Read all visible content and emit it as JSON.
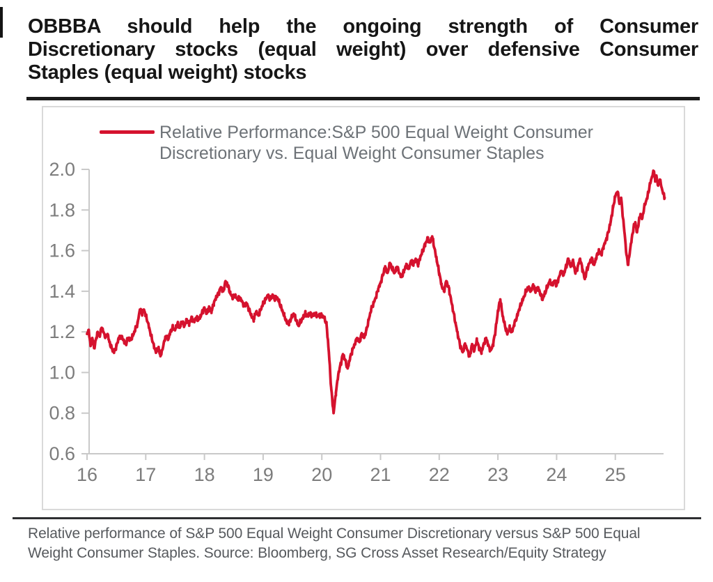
{
  "colors": {
    "title": "#161616",
    "rule": "#1b1b1b",
    "panel_border": "#d9d9d9",
    "axis": "#c9c9c9",
    "tick_label": "#7c7c7c",
    "legend_text": "#6d7277",
    "caption": "#56595d",
    "line": "#d5122e",
    "footnote_rule": "#2e2f32"
  },
  "header": {
    "title_lines": [
      "OBBBA should help the ongoing strength of Consumer",
      "Discretionary stocks (equal weight) over defensive Consumer",
      "Staples (equal weight) stocks"
    ]
  },
  "footer": {
    "caption_lines": [
      "Relative performance of S&P 500 Equal Weight Consumer Discretionary versus S&P 500 Equal",
      "Weight Consumer Staples. Source: Bloomberg, SG Cross Asset Research/Equity Strategy"
    ]
  },
  "chart_data": {
    "type": "line",
    "title": "",
    "legend_position": "top-inside",
    "legend_label_lines": [
      "Relative Performance:S&P 500 Equal Weight Consumer",
      "Discretionary vs. Equal Weight Consumer Staples"
    ],
    "x_ticks": [
      16,
      17,
      18,
      19,
      20,
      21,
      22,
      23,
      24,
      25
    ],
    "y_ticks": [
      2.0,
      1.8,
      1.6,
      1.4,
      1.2,
      1.0,
      0.8,
      0.6
    ],
    "xlim": [
      16.0,
      25.9
    ],
    "ylim": [
      0.6,
      2.0
    ],
    "grid": false,
    "x_unit": "year (2016-2025)",
    "noise_amplitude": 0.012,
    "series": [
      {
        "name": "Relative Performance: S&P 500 Equal Weight Consumer Discretionary vs. Equal Weight Consumer Staples",
        "color": "#d5122e",
        "points": [
          [
            16.0,
            1.19
          ],
          [
            16.03,
            1.21
          ],
          [
            16.06,
            1.13
          ],
          [
            16.09,
            1.17
          ],
          [
            16.12,
            1.12
          ],
          [
            16.15,
            1.16
          ],
          [
            16.18,
            1.2
          ],
          [
            16.21,
            1.18
          ],
          [
            16.25,
            1.22
          ],
          [
            16.28,
            1.2
          ],
          [
            16.31,
            1.17
          ],
          [
            16.35,
            1.19
          ],
          [
            16.38,
            1.15
          ],
          [
            16.42,
            1.12
          ],
          [
            16.46,
            1.1
          ],
          [
            16.5,
            1.13
          ],
          [
            16.54,
            1.17
          ],
          [
            16.58,
            1.18
          ],
          [
            16.62,
            1.16
          ],
          [
            16.66,
            1.14
          ],
          [
            16.7,
            1.17
          ],
          [
            16.74,
            1.16
          ],
          [
            16.78,
            1.18
          ],
          [
            16.82,
            1.21
          ],
          [
            16.86,
            1.24
          ],
          [
            16.9,
            1.31
          ],
          [
            16.94,
            1.29
          ],
          [
            16.97,
            1.31
          ],
          [
            17.0,
            1.28
          ],
          [
            17.03,
            1.25
          ],
          [
            17.06,
            1.22
          ],
          [
            17.09,
            1.18
          ],
          [
            17.12,
            1.15
          ],
          [
            17.15,
            1.12
          ],
          [
            17.18,
            1.1
          ],
          [
            17.22,
            1.12
          ],
          [
            17.25,
            1.08
          ],
          [
            17.28,
            1.11
          ],
          [
            17.31,
            1.15
          ],
          [
            17.35,
            1.18
          ],
          [
            17.38,
            1.16
          ],
          [
            17.42,
            1.2
          ],
          [
            17.46,
            1.22
          ],
          [
            17.5,
            1.21
          ],
          [
            17.54,
            1.24
          ],
          [
            17.58,
            1.22
          ],
          [
            17.62,
            1.25
          ],
          [
            17.66,
            1.23
          ],
          [
            17.7,
            1.26
          ],
          [
            17.74,
            1.24
          ],
          [
            17.78,
            1.27
          ],
          [
            17.82,
            1.25
          ],
          [
            17.86,
            1.27
          ],
          [
            17.9,
            1.26
          ],
          [
            17.94,
            1.28
          ],
          [
            17.97,
            1.3
          ],
          [
            18.0,
            1.32
          ],
          [
            18.04,
            1.29
          ],
          [
            18.08,
            1.32
          ],
          [
            18.12,
            1.3
          ],
          [
            18.16,
            1.34
          ],
          [
            18.2,
            1.37
          ],
          [
            18.24,
            1.39
          ],
          [
            18.28,
            1.42
          ],
          [
            18.32,
            1.4
          ],
          [
            18.36,
            1.45
          ],
          [
            18.4,
            1.43
          ],
          [
            18.44,
            1.39
          ],
          [
            18.48,
            1.37
          ],
          [
            18.52,
            1.38
          ],
          [
            18.56,
            1.36
          ],
          [
            18.6,
            1.37
          ],
          [
            18.64,
            1.35
          ],
          [
            18.68,
            1.33
          ],
          [
            18.72,
            1.34
          ],
          [
            18.76,
            1.31
          ],
          [
            18.8,
            1.28
          ],
          [
            18.84,
            1.26
          ],
          [
            18.88,
            1.3
          ],
          [
            18.92,
            1.28
          ],
          [
            18.96,
            1.31
          ],
          [
            19.0,
            1.34
          ],
          [
            19.04,
            1.36
          ],
          [
            19.08,
            1.38
          ],
          [
            19.12,
            1.36
          ],
          [
            19.16,
            1.38
          ],
          [
            19.2,
            1.36
          ],
          [
            19.24,
            1.37
          ],
          [
            19.28,
            1.34
          ],
          [
            19.32,
            1.31
          ],
          [
            19.36,
            1.28
          ],
          [
            19.4,
            1.25
          ],
          [
            19.44,
            1.24
          ],
          [
            19.48,
            1.27
          ],
          [
            19.52,
            1.29
          ],
          [
            19.56,
            1.26
          ],
          [
            19.6,
            1.23
          ],
          [
            19.64,
            1.25
          ],
          [
            19.68,
            1.27
          ],
          [
            19.72,
            1.29
          ],
          [
            19.76,
            1.28
          ],
          [
            19.8,
            1.29
          ],
          [
            19.84,
            1.28
          ],
          [
            19.88,
            1.29
          ],
          [
            19.92,
            1.28
          ],
          [
            19.96,
            1.28
          ],
          [
            20.0,
            1.28
          ],
          [
            20.04,
            1.27
          ],
          [
            20.08,
            1.24
          ],
          [
            20.12,
            1.1
          ],
          [
            20.16,
            0.92
          ],
          [
            20.2,
            0.8
          ],
          [
            20.24,
            0.9
          ],
          [
            20.28,
            0.99
          ],
          [
            20.32,
            1.04
          ],
          [
            20.36,
            1.09
          ],
          [
            20.4,
            1.06
          ],
          [
            20.44,
            1.02
          ],
          [
            20.48,
            1.07
          ],
          [
            20.52,
            1.11
          ],
          [
            20.56,
            1.14
          ],
          [
            20.6,
            1.17
          ],
          [
            20.64,
            1.15
          ],
          [
            20.68,
            1.19
          ],
          [
            20.72,
            1.17
          ],
          [
            20.76,
            1.21
          ],
          [
            20.8,
            1.26
          ],
          [
            20.84,
            1.31
          ],
          [
            20.88,
            1.34
          ],
          [
            20.92,
            1.37
          ],
          [
            20.96,
            1.41
          ],
          [
            21.0,
            1.44
          ],
          [
            21.04,
            1.48
          ],
          [
            21.08,
            1.52
          ],
          [
            21.12,
            1.49
          ],
          [
            21.16,
            1.54
          ],
          [
            21.2,
            1.51
          ],
          [
            21.24,
            1.49
          ],
          [
            21.28,
            1.52
          ],
          [
            21.32,
            1.49
          ],
          [
            21.36,
            1.47
          ],
          [
            21.4,
            1.5
          ],
          [
            21.44,
            1.53
          ],
          [
            21.48,
            1.51
          ],
          [
            21.52,
            1.55
          ],
          [
            21.56,
            1.53
          ],
          [
            21.6,
            1.56
          ],
          [
            21.64,
            1.53
          ],
          [
            21.68,
            1.57
          ],
          [
            21.72,
            1.6
          ],
          [
            21.76,
            1.63
          ],
          [
            21.8,
            1.66
          ],
          [
            21.84,
            1.64
          ],
          [
            21.88,
            1.67
          ],
          [
            21.92,
            1.61
          ],
          [
            21.96,
            1.55
          ],
          [
            22.0,
            1.49
          ],
          [
            22.04,
            1.43
          ],
          [
            22.08,
            1.4
          ],
          [
            22.12,
            1.45
          ],
          [
            22.16,
            1.42
          ],
          [
            22.2,
            1.36
          ],
          [
            22.24,
            1.3
          ],
          [
            22.28,
            1.24
          ],
          [
            22.32,
            1.18
          ],
          [
            22.36,
            1.13
          ],
          [
            22.4,
            1.1
          ],
          [
            22.44,
            1.14
          ],
          [
            22.48,
            1.11
          ],
          [
            22.52,
            1.08
          ],
          [
            22.56,
            1.14
          ],
          [
            22.6,
            1.11
          ],
          [
            22.64,
            1.16
          ],
          [
            22.68,
            1.12
          ],
          [
            22.72,
            1.1
          ],
          [
            22.76,
            1.14
          ],
          [
            22.8,
            1.17
          ],
          [
            22.84,
            1.13
          ],
          [
            22.88,
            1.11
          ],
          [
            22.92,
            1.14
          ],
          [
            22.96,
            1.21
          ],
          [
            23.0,
            1.3
          ],
          [
            23.04,
            1.36
          ],
          [
            23.08,
            1.28
          ],
          [
            23.12,
            1.23
          ],
          [
            23.16,
            1.19
          ],
          [
            23.2,
            1.22
          ],
          [
            23.24,
            1.2
          ],
          [
            23.28,
            1.24
          ],
          [
            23.32,
            1.27
          ],
          [
            23.36,
            1.31
          ],
          [
            23.4,
            1.34
          ],
          [
            23.44,
            1.37
          ],
          [
            23.48,
            1.4
          ],
          [
            23.52,
            1.42
          ],
          [
            23.56,
            1.4
          ],
          [
            23.6,
            1.43
          ],
          [
            23.64,
            1.4
          ],
          [
            23.68,
            1.42
          ],
          [
            23.72,
            1.39
          ],
          [
            23.76,
            1.36
          ],
          [
            23.8,
            1.39
          ],
          [
            23.84,
            1.42
          ],
          [
            23.88,
            1.45
          ],
          [
            23.92,
            1.43
          ],
          [
            23.96,
            1.45
          ],
          [
            24.0,
            1.43
          ],
          [
            24.04,
            1.47
          ],
          [
            24.08,
            1.5
          ],
          [
            24.12,
            1.48
          ],
          [
            24.16,
            1.52
          ],
          [
            24.2,
            1.56
          ],
          [
            24.24,
            1.52
          ],
          [
            24.28,
            1.55
          ],
          [
            24.32,
            1.49
          ],
          [
            24.36,
            1.52
          ],
          [
            24.4,
            1.56
          ],
          [
            24.44,
            1.51
          ],
          [
            24.48,
            1.46
          ],
          [
            24.52,
            1.51
          ],
          [
            24.56,
            1.54
          ],
          [
            24.6,
            1.56
          ],
          [
            24.64,
            1.53
          ],
          [
            24.68,
            1.57
          ],
          [
            24.72,
            1.6
          ],
          [
            24.76,
            1.58
          ],
          [
            24.8,
            1.62
          ],
          [
            24.84,
            1.65
          ],
          [
            24.88,
            1.69
          ],
          [
            24.92,
            1.74
          ],
          [
            24.96,
            1.81
          ],
          [
            25.0,
            1.87
          ],
          [
            25.04,
            1.89
          ],
          [
            25.07,
            1.83
          ],
          [
            25.1,
            1.86
          ],
          [
            25.13,
            1.76
          ],
          [
            25.16,
            1.68
          ],
          [
            25.19,
            1.58
          ],
          [
            25.22,
            1.53
          ],
          [
            25.25,
            1.6
          ],
          [
            25.28,
            1.66
          ],
          [
            25.31,
            1.71
          ],
          [
            25.34,
            1.74
          ],
          [
            25.37,
            1.69
          ],
          [
            25.4,
            1.74
          ],
          [
            25.43,
            1.78
          ],
          [
            25.46,
            1.76
          ],
          [
            25.49,
            1.81
          ],
          [
            25.52,
            1.84
          ],
          [
            25.55,
            1.87
          ],
          [
            25.58,
            1.91
          ],
          [
            25.61,
            1.95
          ],
          [
            25.64,
            1.98
          ],
          [
            25.66,
            1.99
          ],
          [
            25.68,
            1.94
          ],
          [
            25.7,
            1.97
          ],
          [
            25.73,
            1.92
          ],
          [
            25.76,
            1.95
          ],
          [
            25.79,
            1.91
          ],
          [
            25.82,
            1.88
          ],
          [
            25.84,
            1.86
          ]
        ]
      }
    ]
  }
}
